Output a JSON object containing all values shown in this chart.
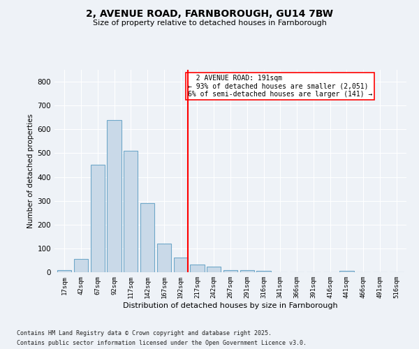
{
  "title1": "2, AVENUE ROAD, FARNBOROUGH, GU14 7BW",
  "title2": "Size of property relative to detached houses in Farnborough",
  "xlabel": "Distribution of detached houses by size in Farnborough",
  "ylabel": "Number of detached properties",
  "bin_labels": [
    "17sqm",
    "42sqm",
    "67sqm",
    "92sqm",
    "117sqm",
    "142sqm",
    "167sqm",
    "192sqm",
    "217sqm",
    "242sqm",
    "267sqm",
    "291sqm",
    "316sqm",
    "341sqm",
    "366sqm",
    "391sqm",
    "416sqm",
    "441sqm",
    "466sqm",
    "491sqm",
    "516sqm"
  ],
  "bar_values": [
    10,
    55,
    450,
    640,
    510,
    290,
    120,
    63,
    33,
    22,
    10,
    8,
    5,
    0,
    0,
    0,
    0,
    5,
    0,
    0,
    0
  ],
  "bar_color": "#c9d9e8",
  "bar_edgecolor": "#6fa8c9",
  "vline_label": "2 AVENUE ROAD: 191sqm",
  "pct_smaller": "93% of detached houses are smaller (2,051)",
  "pct_larger": "6% of semi-detached houses are larger (141)",
  "ylim": [
    0,
    850
  ],
  "yticks": [
    0,
    100,
    200,
    300,
    400,
    500,
    600,
    700,
    800
  ],
  "bg_color": "#eef2f7",
  "footer1": "Contains HM Land Registry data © Crown copyright and database right 2025.",
  "footer2": "Contains public sector information licensed under the Open Government Licence v3.0."
}
